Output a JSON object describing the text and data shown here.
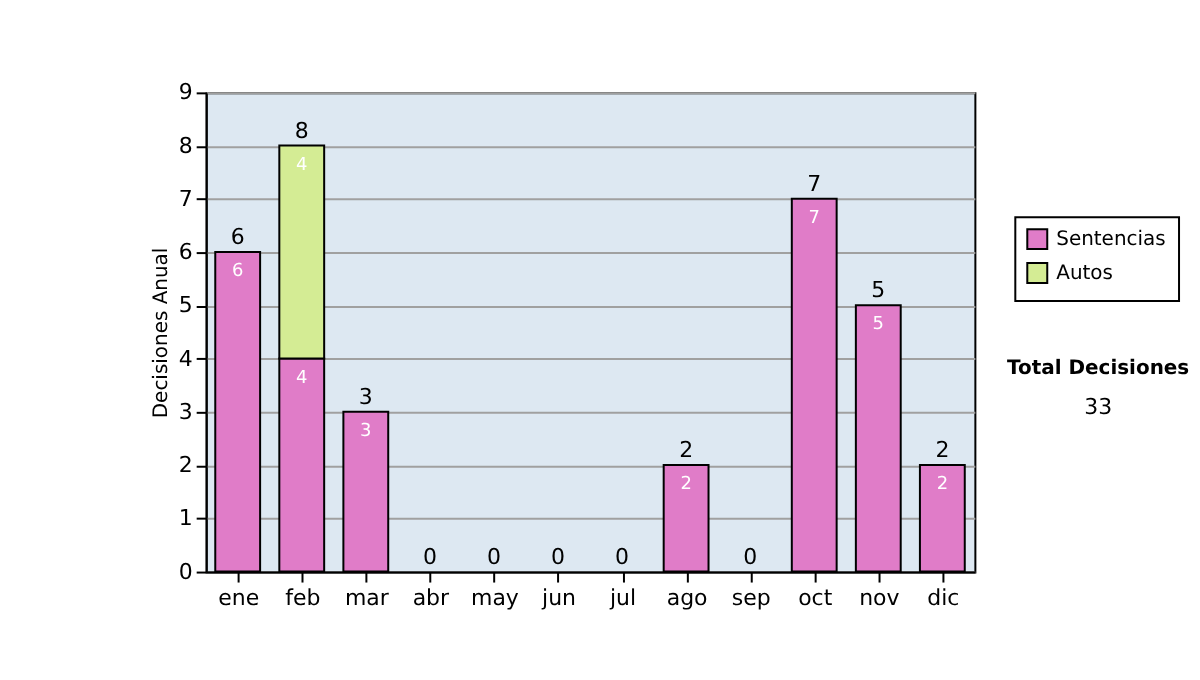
{
  "chart_data": {
    "type": "bar",
    "stacked": true,
    "ylabel": "Decisiones Anual",
    "categories": [
      "ene",
      "feb",
      "mar",
      "abr",
      "may",
      "jun",
      "jul",
      "ago",
      "sep",
      "oct",
      "nov",
      "dic"
    ],
    "series": [
      {
        "name": "Sentencias",
        "color": "#e07cc8",
        "values": [
          6,
          4,
          3,
          0,
          0,
          0,
          0,
          2,
          0,
          7,
          5,
          2
        ],
        "value_labels": [
          "6",
          "4",
          "3",
          null,
          null,
          null,
          null,
          "2",
          null,
          "7",
          "5",
          "2"
        ]
      },
      {
        "name": "Autos",
        "color": "#d4ec94",
        "values": [
          0,
          4,
          0,
          0,
          0,
          0,
          0,
          0,
          0,
          0,
          0,
          0
        ],
        "value_labels": [
          null,
          "4",
          null,
          null,
          null,
          null,
          null,
          null,
          null,
          null,
          null,
          null
        ]
      }
    ],
    "totals": [
      "6",
      "8",
      "3",
      "0",
      "0",
      "0",
      "0",
      "2",
      "0",
      "7",
      "5",
      "2"
    ],
    "ylim": [
      0,
      9
    ],
    "yticks": [
      0,
      1,
      2,
      3,
      4,
      5,
      6,
      7,
      8,
      9
    ],
    "grid": "y",
    "legend": "right",
    "annotations": [
      "Total Decisiones",
      "33"
    ]
  }
}
